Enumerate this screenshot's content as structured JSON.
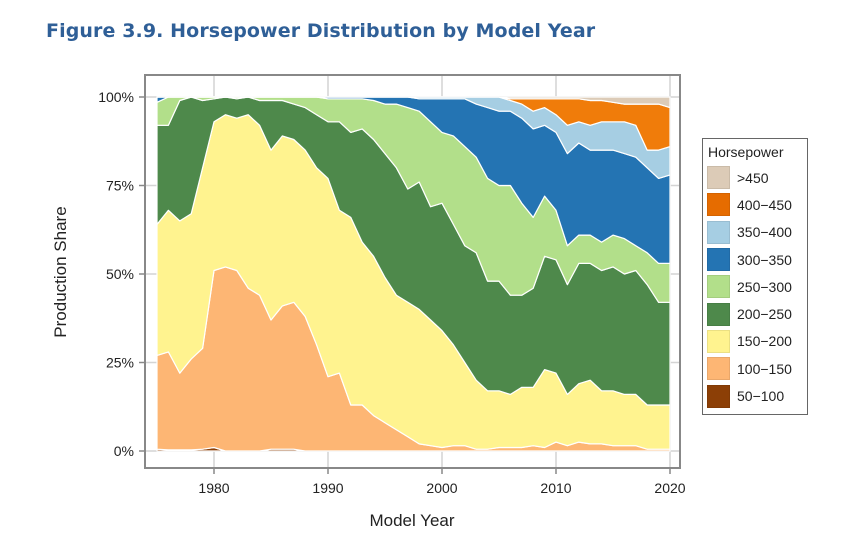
{
  "figure_title": "Figure 3.9. Horsepower Distribution by Model Year",
  "chart_data": {
    "type": "area",
    "stacked": true,
    "title": "Figure 3.9. Horsepower Distribution by Model Year",
    "xlabel": "Model Year",
    "ylabel": "Production Share",
    "xlim": [
      1975,
      2020
    ],
    "ylim": [
      0,
      100
    ],
    "xticks": [
      1980,
      1990,
      2000,
      2010,
      2020
    ],
    "yticks": [
      0,
      25,
      50,
      75,
      100
    ],
    "ytick_labels": [
      "0%",
      "25%",
      "50%",
      "75%",
      "100%"
    ],
    "grid": true,
    "legend_title": "Horsepower",
    "legend_position": "right",
    "x": [
      1975,
      1976,
      1977,
      1978,
      1979,
      1980,
      1981,
      1982,
      1983,
      1984,
      1985,
      1986,
      1987,
      1988,
      1989,
      1990,
      1991,
      1992,
      1993,
      1994,
      1995,
      1996,
      1997,
      1998,
      1999,
      2000,
      2001,
      2002,
      2003,
      2004,
      2005,
      2006,
      2007,
      2008,
      2009,
      2010,
      2011,
      2012,
      2013,
      2014,
      2015,
      2016,
      2017,
      2018,
      2019,
      2020
    ],
    "cumulative_tops": {
      "50-100": [
        0.5,
        0.3,
        0.3,
        0.3,
        0.5,
        1,
        0,
        0,
        0,
        0,
        0.5,
        0.5,
        0.5,
        0,
        0,
        0,
        0,
        0,
        0,
        0,
        0,
        0,
        0,
        0,
        0,
        0,
        0,
        0,
        0,
        0,
        0,
        0,
        0,
        0,
        0,
        0,
        0,
        0,
        0,
        0,
        0,
        0,
        0,
        0,
        0,
        0
      ],
      "100-150": [
        27,
        28,
        22,
        26,
        29,
        51,
        52,
        51,
        46,
        44,
        37,
        41,
        42,
        38,
        30,
        21,
        22,
        13,
        13,
        10,
        8,
        6,
        4,
        2,
        1.5,
        1,
        1.5,
        1.5,
        0.5,
        0.5,
        1,
        1,
        1,
        1.5,
        1,
        2.5,
        1.5,
        2.5,
        2,
        2,
        1.5,
        1.5,
        1.5,
        0.5,
        0.5,
        0.5
      ],
      "150-200": [
        64,
        68,
        65,
        67,
        80,
        93,
        95,
        94,
        95,
        92,
        85,
        89,
        88,
        85,
        80,
        77,
        68,
        66,
        59,
        55,
        49,
        44,
        42,
        40,
        37,
        34,
        30,
        25,
        20,
        17,
        17,
        16,
        18,
        18,
        23,
        22,
        16,
        19,
        20,
        17,
        17,
        16,
        16,
        13,
        13,
        13
      ],
      "200-250": [
        92,
        92,
        99,
        100,
        99,
        99.5,
        100,
        99.5,
        100,
        99,
        99,
        99,
        98,
        97,
        95,
        93,
        93,
        90,
        91,
        88,
        84,
        80,
        74,
        76,
        69,
        70,
        64,
        58,
        56,
        48,
        48,
        44,
        44,
        46,
        55,
        54,
        47,
        53,
        53,
        51,
        52,
        50,
        51,
        47,
        42,
        42
      ],
      "250-300": [
        98.5,
        100,
        100,
        100,
        100,
        100,
        100,
        100,
        100,
        100,
        100,
        100,
        100,
        100,
        100,
        99.5,
        99.5,
        99.5,
        99.5,
        99,
        98,
        98,
        97,
        96,
        93,
        90,
        89,
        86,
        83,
        77,
        75,
        75,
        70,
        66,
        72,
        68,
        58,
        61,
        61,
        59,
        61,
        60,
        58,
        56,
        53,
        53
      ],
      "300-350": [
        100,
        100,
        100,
        100,
        100,
        100,
        100,
        100,
        100,
        100,
        100,
        100,
        100,
        100,
        100,
        100,
        100,
        100,
        100,
        100,
        100,
        100,
        100,
        99.5,
        99.5,
        99.5,
        99.5,
        99.5,
        98,
        97,
        96,
        96,
        94,
        91,
        92,
        90,
        84,
        87,
        85,
        85,
        85,
        84,
        83,
        80,
        77,
        78
      ],
      "350-400": [
        100,
        100,
        100,
        100,
        100,
        100,
        100,
        100,
        100,
        100,
        100,
        100,
        100,
        100,
        100,
        100,
        100,
        100,
        100,
        100,
        100,
        100,
        100,
        100,
        100,
        100,
        100,
        100,
        100,
        100,
        100,
        99,
        98,
        96,
        97,
        95,
        92,
        93,
        92,
        93,
        93,
        93,
        92,
        85,
        85,
        86
      ],
      "400-450": [
        100,
        100,
        100,
        100,
        100,
        100,
        100,
        100,
        100,
        100,
        100,
        100,
        100,
        100,
        100,
        100,
        100,
        100,
        100,
        100,
        100,
        100,
        100,
        100,
        100,
        100,
        100,
        100,
        100,
        100,
        100,
        99.5,
        99.5,
        99.5,
        99.5,
        99.5,
        99.5,
        99.5,
        99,
        99,
        98.5,
        98,
        98,
        98,
        98,
        97
      ],
      ">450": [
        100,
        100,
        100,
        100,
        100,
        100,
        100,
        100,
        100,
        100,
        100,
        100,
        100,
        100,
        100,
        100,
        100,
        100,
        100,
        100,
        100,
        100,
        100,
        100,
        100,
        100,
        100,
        100,
        100,
        100,
        100,
        100,
        100,
        100,
        100,
        100,
        100,
        100,
        100,
        100,
        100,
        100,
        100,
        100,
        100,
        100
      ]
    },
    "series": [
      {
        "name": "50-100",
        "color": "#8c3f06"
      },
      {
        "name": "100-150",
        "color": "#fdb674"
      },
      {
        "name": "150-200",
        "color": "#fff38f"
      },
      {
        "name": "200-250",
        "color": "#4e894b"
      },
      {
        "name": "250-300",
        "color": "#b2df8a"
      },
      {
        "name": "300-350",
        "color": "#2474b3"
      },
      {
        "name": "350-400",
        "color": "#a6cee3"
      },
      {
        "name": "400-450",
        "color": "#f07c0a"
      },
      {
        "name": ">450",
        "color": "#dccbb7"
      }
    ]
  },
  "legend": {
    "title": "Horsepower",
    "items": [
      {
        "label": ">450",
        "color": "#dccbb7"
      },
      {
        "label": "400−450",
        "color": "#e66c00"
      },
      {
        "label": "350−400",
        "color": "#a6cee3"
      },
      {
        "label": "300−350",
        "color": "#2474b3"
      },
      {
        "label": "250−300",
        "color": "#b2df8a"
      },
      {
        "label": "200−250",
        "color": "#4e894b"
      },
      {
        "label": "150−200",
        "color": "#fff38f"
      },
      {
        "label": "100−150",
        "color": "#fdb674"
      },
      {
        "label": "50−100",
        "color": "#8c3f06"
      }
    ]
  }
}
